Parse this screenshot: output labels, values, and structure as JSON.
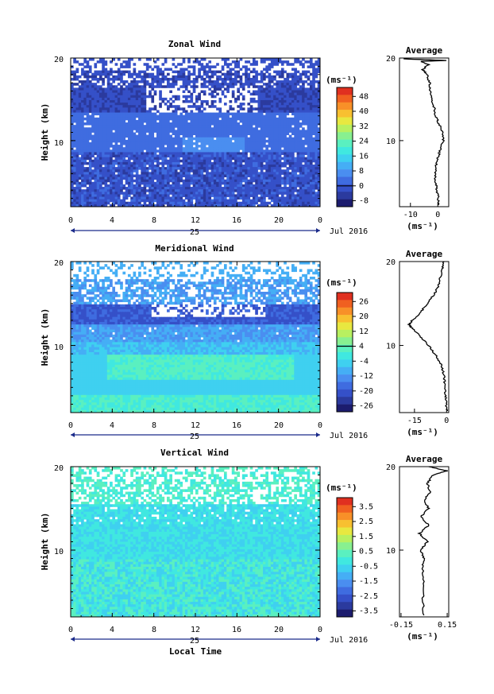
{
  "colormap": [
    "#1c1c6e",
    "#2b3a9e",
    "#3550c8",
    "#3f6ce0",
    "#4a8ef0",
    "#45aef5",
    "#3fd0f0",
    "#40e8e0",
    "#5af0c0",
    "#88f090",
    "#b8f060",
    "#e8e840",
    "#f8c030",
    "#f89028",
    "#f06020",
    "#e03020"
  ],
  "chart_data": [
    {
      "type": "heatmap",
      "title": "Zonal Wind",
      "xlabel": "",
      "ylabel": "Height (km)",
      "x_range": [
        0,
        24
      ],
      "x_ticks": [
        "0",
        "4",
        "8",
        "12",
        "16",
        "20",
        "0"
      ],
      "x_day_label": "25",
      "date_label": "Jul 2016",
      "y_range": [
        2,
        20
      ],
      "y_ticks": [
        "20",
        "10"
      ],
      "colorbar": {
        "unit": "(ms⁻¹)",
        "min": -12,
        "max": 52,
        "ticks": [
          "48",
          "40",
          "32",
          "24",
          "16",
          "8",
          "0",
          "-8"
        ],
        "line_at": "0"
      },
      "profile": {
        "title": "Average",
        "unit": "(ms⁻¹)",
        "x_range": [
          -14,
          4
        ],
        "x_ticks": [
          "-10",
          "0"
        ],
        "y_ticks": [
          "20",
          "10"
        ],
        "points": [
          [
            0.5,
            2.2
          ],
          [
            0.2,
            3
          ],
          [
            -0.3,
            4
          ],
          [
            -0.8,
            5
          ],
          [
            -1.0,
            6
          ],
          [
            -0.6,
            7
          ],
          [
            0.1,
            8
          ],
          [
            1.0,
            9
          ],
          [
            2.0,
            10
          ],
          [
            1.8,
            11
          ],
          [
            0.5,
            12
          ],
          [
            -0.8,
            13
          ],
          [
            -1.3,
            14
          ],
          [
            -2.1,
            15
          ],
          [
            -2.8,
            16
          ],
          [
            -3.0,
            17
          ],
          [
            -4.0,
            18
          ],
          [
            -5.5,
            18.6
          ],
          [
            -3.5,
            19.2
          ],
          [
            -6,
            19.6
          ],
          [
            3.5,
            19.7
          ],
          [
            -12.5,
            19.9
          ]
        ]
      }
    },
    {
      "type": "heatmap",
      "title": "Meridional Wind",
      "xlabel": "",
      "ylabel": "Height (km)",
      "x_range": [
        0,
        24
      ],
      "x_ticks": [
        "0",
        "4",
        "8",
        "12",
        "16",
        "20",
        "0"
      ],
      "x_day_label": "25",
      "date_label": "Jul 2016",
      "y_range": [
        2,
        20
      ],
      "y_ticks": [
        "20",
        "10"
      ],
      "colorbar": {
        "unit": "(ms⁻¹)",
        "min": -30,
        "max": 30,
        "ticks": [
          "26",
          "20",
          "12",
          "4",
          "-4",
          "-12",
          "-20",
          "-26"
        ],
        "line_at": "4"
      },
      "profile": {
        "title": "Average",
        "unit": "(ms⁻¹)",
        "x_range": [
          -22,
          1
        ],
        "x_ticks": [
          "-15",
          "0"
        ],
        "y_ticks": [
          "20",
          "10"
        ],
        "points": [
          [
            0.2,
            2.2
          ],
          [
            -0.2,
            3
          ],
          [
            -0.5,
            4
          ],
          [
            -0.8,
            5
          ],
          [
            -1.0,
            6
          ],
          [
            -1.8,
            7
          ],
          [
            -3.0,
            8
          ],
          [
            -5.5,
            9
          ],
          [
            -8.5,
            10
          ],
          [
            -12,
            11
          ],
          [
            -16,
            12
          ],
          [
            -17.5,
            12.5
          ],
          [
            -16,
            13
          ],
          [
            -12,
            14
          ],
          [
            -9,
            15
          ],
          [
            -6,
            16
          ],
          [
            -4,
            17
          ],
          [
            -3,
            18
          ],
          [
            -2,
            19
          ],
          [
            -1.2,
            20
          ]
        ]
      }
    },
    {
      "type": "heatmap",
      "title": "Vertical Wind",
      "xlabel": "Local Time",
      "ylabel": "Height (km)",
      "x_range": [
        0,
        24
      ],
      "x_ticks": [
        "0",
        "4",
        "8",
        "12",
        "16",
        "20",
        "0"
      ],
      "x_day_label": "25",
      "date_label": "Jul 2016",
      "y_range": [
        2,
        20
      ],
      "y_ticks": [
        "20",
        "10"
      ],
      "colorbar": {
        "unit": "(ms⁻¹)",
        "min": -4.3,
        "max": 4.3,
        "ticks": [
          "3.5",
          "2.5",
          "1.5",
          "0.5",
          "-0.5",
          "-1.5",
          "-2.5",
          "-3.5"
        ],
        "line_at": ""
      },
      "profile": {
        "title": "Average",
        "unit": "(ms⁻¹)",
        "x_range": [
          -0.16,
          0.16
        ],
        "x_ticks": [
          "-0.15",
          "0.15"
        ],
        "y_ticks": [
          "20",
          "10"
        ],
        "points": [
          [
            0.0,
            2.2
          ],
          [
            -0.01,
            4
          ],
          [
            0.0,
            6
          ],
          [
            -0.01,
            8
          ],
          [
            0.0,
            9
          ],
          [
            -0.02,
            10
          ],
          [
            0.02,
            11
          ],
          [
            -0.03,
            12
          ],
          [
            0.03,
            13
          ],
          [
            -0.02,
            14
          ],
          [
            0.03,
            15
          ],
          [
            0.0,
            16
          ],
          [
            0.04,
            17
          ],
          [
            0.02,
            18
          ],
          [
            0.06,
            19
          ],
          [
            0.15,
            19.5
          ],
          [
            0.03,
            20
          ]
        ]
      }
    }
  ]
}
